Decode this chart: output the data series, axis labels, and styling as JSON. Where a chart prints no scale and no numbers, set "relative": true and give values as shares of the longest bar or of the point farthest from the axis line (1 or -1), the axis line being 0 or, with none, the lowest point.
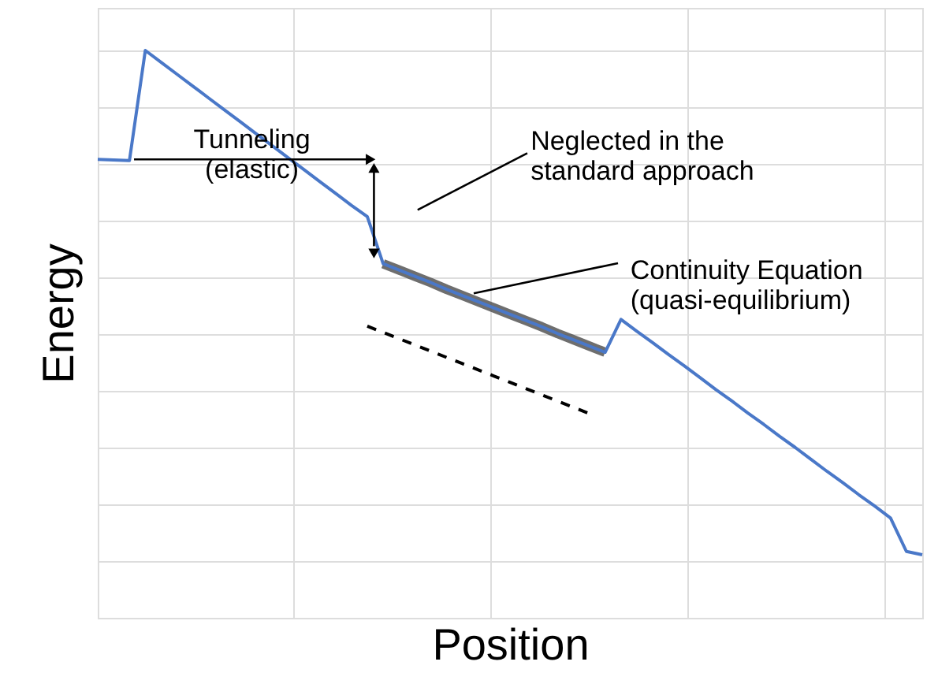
{
  "chart_data": {
    "type": "line",
    "relative": true,
    "xlabel": "Position",
    "ylabel": "Energy",
    "grid": true,
    "marker": "none",
    "categories": [
      null,
      null,
      null,
      null,
      null,
      null,
      null,
      null,
      null,
      null,
      null,
      null,
      null,
      null,
      null,
      null,
      null,
      null,
      null,
      null,
      null,
      null,
      null,
      null,
      null,
      null,
      null,
      null,
      null,
      null,
      null,
      null,
      null,
      null,
      null,
      null,
      null,
      null,
      null,
      null,
      null,
      null,
      null,
      null,
      null,
      null,
      null,
      null,
      null,
      null,
      null,
      null,
      null
    ],
    "annotations": [
      "Tunneling\n(elastic)",
      "Neglected in the\nstandard approach",
      "Continuity Equation\n(quasi-equilibrium)"
    ],
    "series": [
      {
        "color": "#555555",
        "values": [
          null,
          null,
          null,
          null,
          null,
          null,
          null,
          null,
          null,
          null,
          null,
          null,
          null,
          null,
          null,
          null,
          null,
          null,
          0.624,
          0.613,
          0.602,
          0.591,
          0.579,
          0.568,
          0.557,
          0.546,
          0.535,
          0.524,
          0.513,
          0.501,
          0.49,
          0.479,
          0.468,
          null,
          null,
          null,
          null,
          null,
          null,
          null,
          null,
          null,
          null,
          null,
          null,
          null,
          null,
          null,
          null,
          null,
          null,
          null,
          null
        ]
      },
      {
        "color": "#4a78c8",
        "values": [
          0.808,
          0.807,
          0.806,
          1.0,
          0.979,
          0.958,
          0.937,
          0.916,
          0.895,
          0.874,
          0.853,
          0.832,
          0.811,
          0.79,
          0.769,
          0.748,
          0.727,
          0.707,
          0.624,
          0.613,
          0.602,
          0.591,
          0.579,
          0.568,
          0.557,
          0.546,
          0.535,
          0.524,
          0.513,
          0.501,
          0.49,
          0.479,
          0.468,
          0.526,
          0.505,
          0.485,
          0.464,
          0.444,
          0.423,
          0.402,
          0.382,
          0.361,
          0.341,
          0.32,
          0.3,
          0.279,
          0.258,
          0.238,
          0.217,
          0.197,
          0.176,
          0.117,
          0.111
        ]
      },
      {
        "color": "#000000",
        "line_style": "dashed",
        "values": [
          null,
          null,
          null,
          null,
          null,
          null,
          null,
          null,
          null,
          null,
          null,
          null,
          null,
          null,
          null,
          null,
          null,
          0.514,
          0.503,
          0.492,
          0.481,
          0.47,
          0.459,
          0.448,
          0.437,
          0.426,
          0.415,
          0.404,
          0.393,
          0.382,
          0.371,
          0.36,
          null,
          null,
          null,
          null,
          null,
          null,
          null,
          null,
          null,
          null,
          null,
          null,
          null,
          null,
          null,
          null,
          null,
          null,
          null,
          null,
          null
        ]
      }
    ]
  }
}
